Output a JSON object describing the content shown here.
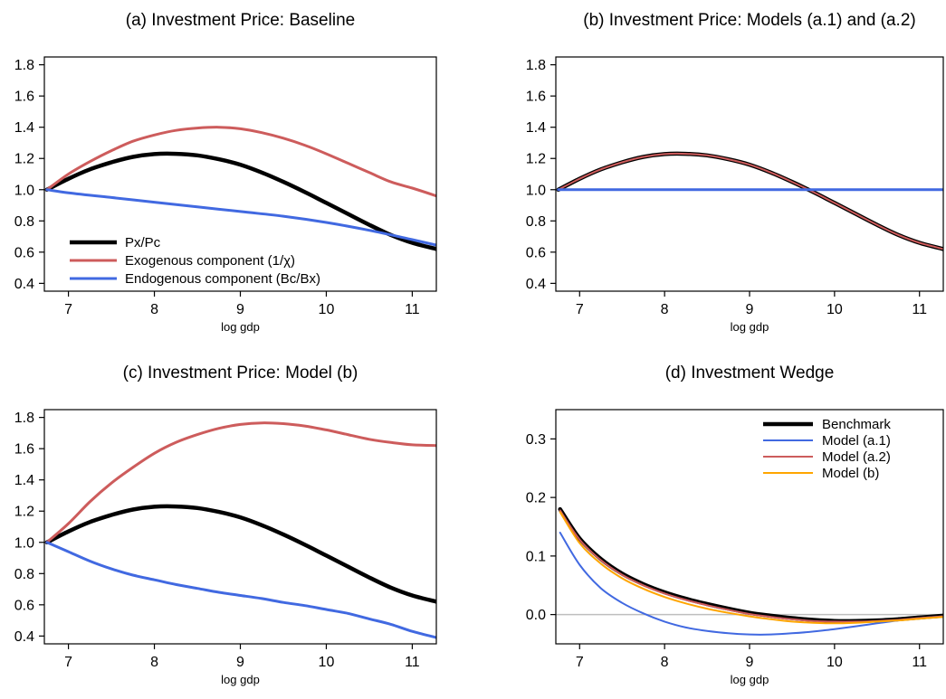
{
  "colors": {
    "black": "#000000",
    "red": "#cd5c5c",
    "blue": "#4169e1",
    "orange": "#ffa500",
    "zero_line": "#bebebe"
  },
  "chart_data": [
    {
      "type": "line",
      "title": "(a) Investment Price: Baseline",
      "xlabel": "log gdp",
      "ylabel": "",
      "xlim": [
        6.72,
        11.28
      ],
      "ylim": [
        0.35,
        1.85
      ],
      "xticks": [
        7,
        8,
        9,
        10,
        11
      ],
      "xtick_labels": [
        "7",
        "8",
        "9",
        "10",
        "11"
      ],
      "yticks": [
        0.4,
        0.6,
        0.8,
        1.0,
        1.2,
        1.4,
        1.6,
        1.8
      ],
      "ytick_labels": [
        "0.4",
        "0.6",
        "0.8",
        "1.0",
        "1.2",
        "1.4",
        "1.6",
        "1.8"
      ],
      "legend": "bottom-left",
      "series": [
        {
          "name": "Px/Pc",
          "color": "#000000",
          "width": 4.5,
          "x": [
            6.75,
            7.0,
            7.25,
            7.5,
            7.75,
            8.0,
            8.25,
            8.5,
            8.75,
            9.0,
            9.25,
            9.5,
            9.75,
            10.0,
            10.25,
            10.5,
            10.75,
            11.0,
            11.28
          ],
          "y": [
            1.0,
            1.07,
            1.13,
            1.175,
            1.21,
            1.228,
            1.23,
            1.22,
            1.195,
            1.16,
            1.11,
            1.05,
            0.985,
            0.915,
            0.845,
            0.775,
            0.71,
            0.66,
            0.62
          ]
        },
        {
          "name": "Exogenous component (1/χ)",
          "color": "#cd5c5c",
          "width": 3,
          "x": [
            6.75,
            7.0,
            7.25,
            7.5,
            7.75,
            8.0,
            8.25,
            8.5,
            8.75,
            9.0,
            9.25,
            9.5,
            9.75,
            10.0,
            10.25,
            10.5,
            10.75,
            11.0,
            11.28
          ],
          "y": [
            1.0,
            1.1,
            1.18,
            1.25,
            1.31,
            1.35,
            1.38,
            1.395,
            1.4,
            1.39,
            1.365,
            1.33,
            1.285,
            1.23,
            1.17,
            1.11,
            1.05,
            1.01,
            0.96
          ]
        },
        {
          "name": "Endogenous component (Bc/Bx)",
          "color": "#4169e1",
          "width": 3,
          "x": [
            6.75,
            7.0,
            7.5,
            8.0,
            8.5,
            9.0,
            9.5,
            10.0,
            10.5,
            11.0,
            11.28
          ],
          "y": [
            1.0,
            0.98,
            0.95,
            0.92,
            0.89,
            0.86,
            0.83,
            0.79,
            0.74,
            0.68,
            0.645
          ]
        }
      ]
    },
    {
      "type": "line",
      "title": "(b) Investment Price: Models (a.1) and (a.2)",
      "xlabel": "log gdp",
      "ylabel": "",
      "xlim": [
        6.72,
        11.28
      ],
      "ylim": [
        0.35,
        1.85
      ],
      "xticks": [
        7,
        8,
        9,
        10,
        11
      ],
      "xtick_labels": [
        "7",
        "8",
        "9",
        "10",
        "11"
      ],
      "yticks": [
        0.4,
        0.6,
        0.8,
        1.0,
        1.2,
        1.4,
        1.6,
        1.8
      ],
      "ytick_labels": [
        "0.4",
        "0.6",
        "0.8",
        "1.0",
        "1.2",
        "1.4",
        "1.6",
        "1.8"
      ],
      "legend": "none",
      "series": [
        {
          "color": "#000000",
          "width": 4.5,
          "x": [
            6.75,
            7.0,
            7.25,
            7.5,
            7.75,
            8.0,
            8.25,
            8.5,
            8.75,
            9.0,
            9.25,
            9.5,
            9.75,
            10.0,
            10.25,
            10.5,
            10.75,
            11.0,
            11.28
          ],
          "y": [
            1.0,
            1.07,
            1.13,
            1.175,
            1.21,
            1.228,
            1.23,
            1.22,
            1.195,
            1.16,
            1.11,
            1.05,
            0.985,
            0.915,
            0.845,
            0.775,
            0.71,
            0.66,
            0.62
          ]
        },
        {
          "color": "#cd5c5c",
          "width": 2,
          "x": [
            6.75,
            7.0,
            7.25,
            7.5,
            7.75,
            8.0,
            8.25,
            8.5,
            8.75,
            9.0,
            9.25,
            9.5,
            9.75,
            10.0,
            10.25,
            10.5,
            10.75,
            11.0,
            11.28
          ],
          "y": [
            1.0,
            1.07,
            1.13,
            1.175,
            1.21,
            1.228,
            1.23,
            1.22,
            1.195,
            1.16,
            1.11,
            1.05,
            0.985,
            0.915,
            0.845,
            0.775,
            0.71,
            0.66,
            0.62
          ]
        },
        {
          "color": "#4169e1",
          "width": 3,
          "x": [
            6.75,
            11.28
          ],
          "y": [
            1.0,
            1.0
          ]
        }
      ]
    },
    {
      "type": "line",
      "title": "(c) Investment Price: Model (b)",
      "xlabel": "log gdp",
      "ylabel": "",
      "xlim": [
        6.72,
        11.28
      ],
      "ylim": [
        0.35,
        1.85
      ],
      "xticks": [
        7,
        8,
        9,
        10,
        11
      ],
      "xtick_labels": [
        "7",
        "8",
        "9",
        "10",
        "11"
      ],
      "yticks": [
        0.4,
        0.6,
        0.8,
        1.0,
        1.2,
        1.4,
        1.6,
        1.8
      ],
      "ytick_labels": [
        "0.4",
        "0.6",
        "0.8",
        "1.0",
        "1.2",
        "1.4",
        "1.6",
        "1.8"
      ],
      "legend": "none",
      "series": [
        {
          "color": "#000000",
          "width": 4.5,
          "x": [
            6.75,
            7.0,
            7.25,
            7.5,
            7.75,
            8.0,
            8.25,
            8.5,
            8.75,
            9.0,
            9.25,
            9.5,
            9.75,
            10.0,
            10.25,
            10.5,
            10.75,
            11.0,
            11.28
          ],
          "y": [
            1.0,
            1.07,
            1.13,
            1.175,
            1.21,
            1.228,
            1.23,
            1.22,
            1.195,
            1.16,
            1.11,
            1.05,
            0.985,
            0.915,
            0.845,
            0.775,
            0.71,
            0.66,
            0.62
          ]
        },
        {
          "color": "#cd5c5c",
          "width": 3,
          "x": [
            6.75,
            7.0,
            7.25,
            7.5,
            7.75,
            8.0,
            8.25,
            8.5,
            8.75,
            9.0,
            9.25,
            9.5,
            9.75,
            10.0,
            10.25,
            10.5,
            10.75,
            11.0,
            11.28
          ],
          "y": [
            1.0,
            1.12,
            1.26,
            1.38,
            1.48,
            1.57,
            1.64,
            1.69,
            1.73,
            1.755,
            1.765,
            1.76,
            1.745,
            1.72,
            1.69,
            1.66,
            1.64,
            1.625,
            1.62
          ]
        },
        {
          "color": "#4169e1",
          "width": 3,
          "x": [
            6.75,
            7.0,
            7.25,
            7.5,
            7.75,
            8.0,
            8.25,
            8.5,
            8.75,
            9.0,
            9.25,
            9.5,
            9.75,
            10.0,
            10.25,
            10.5,
            10.75,
            11.0,
            11.28
          ],
          "y": [
            1.0,
            0.94,
            0.88,
            0.83,
            0.79,
            0.76,
            0.73,
            0.705,
            0.68,
            0.66,
            0.64,
            0.615,
            0.595,
            0.57,
            0.545,
            0.51,
            0.475,
            0.43,
            0.39
          ]
        }
      ]
    },
    {
      "type": "line",
      "title": "(d) Investment Wedge",
      "xlabel": "log gdp",
      "ylabel": "",
      "xlim": [
        6.72,
        11.28
      ],
      "ylim": [
        -0.05,
        0.35
      ],
      "xticks": [
        7,
        8,
        9,
        10,
        11
      ],
      "xtick_labels": [
        "7",
        "8",
        "9",
        "10",
        "11"
      ],
      "yticks": [
        0.0,
        0.1,
        0.2,
        0.3
      ],
      "ytick_labels": [
        "0.0",
        "0.1",
        "0.2",
        "0.3"
      ],
      "zero_line": true,
      "legend": "top-right",
      "series": [
        {
          "name": "Benchmark",
          "color": "#000000",
          "width": 4.5,
          "x": [
            6.77,
            7.0,
            7.25,
            7.5,
            7.75,
            8.0,
            8.25,
            8.5,
            8.75,
            9.0,
            9.25,
            9.5,
            9.75,
            10.0,
            10.25,
            10.5,
            10.75,
            11.0,
            11.28
          ],
          "y": [
            0.18,
            0.13,
            0.095,
            0.07,
            0.052,
            0.038,
            0.027,
            0.018,
            0.01,
            0.003,
            -0.002,
            -0.006,
            -0.009,
            -0.011,
            -0.011,
            -0.01,
            -0.008,
            -0.005,
            -0.002
          ]
        },
        {
          "name": "Model (a.1)",
          "color": "#4169e1",
          "width": 2,
          "x": [
            6.77,
            7.0,
            7.25,
            7.5,
            7.75,
            8.0,
            8.25,
            8.5,
            8.75,
            9.0,
            9.25,
            9.5,
            9.75,
            10.0,
            10.25,
            10.5,
            10.75,
            11.0,
            11.28
          ],
          "y": [
            0.14,
            0.085,
            0.045,
            0.02,
            0.002,
            -0.012,
            -0.022,
            -0.028,
            -0.032,
            -0.034,
            -0.034,
            -0.032,
            -0.029,
            -0.025,
            -0.02,
            -0.015,
            -0.01,
            -0.006,
            -0.003
          ]
        },
        {
          "name": "Model (a.2)",
          "color": "#cd5c5c",
          "width": 2,
          "x": [
            6.77,
            7.0,
            7.25,
            7.5,
            7.75,
            8.0,
            8.25,
            8.5,
            8.75,
            9.0,
            9.25,
            9.5,
            9.75,
            10.0,
            10.25,
            10.5,
            10.75,
            11.0,
            11.28
          ],
          "y": [
            0.178,
            0.128,
            0.093,
            0.068,
            0.05,
            0.036,
            0.025,
            0.016,
            0.008,
            0.001,
            -0.004,
            -0.008,
            -0.011,
            -0.012,
            -0.012,
            -0.011,
            -0.009,
            -0.006,
            -0.003
          ]
        },
        {
          "name": "Model (b)",
          "color": "#ffa500",
          "width": 2,
          "x": [
            6.77,
            7.0,
            7.25,
            7.5,
            7.75,
            8.0,
            8.25,
            8.5,
            8.75,
            9.0,
            9.25,
            9.5,
            9.75,
            10.0,
            10.25,
            10.5,
            10.75,
            11.0,
            11.28
          ],
          "y": [
            0.175,
            0.122,
            0.087,
            0.062,
            0.044,
            0.03,
            0.019,
            0.01,
            0.003,
            -0.003,
            -0.008,
            -0.012,
            -0.014,
            -0.015,
            -0.014,
            -0.012,
            -0.01,
            -0.007,
            -0.004
          ]
        }
      ]
    }
  ]
}
